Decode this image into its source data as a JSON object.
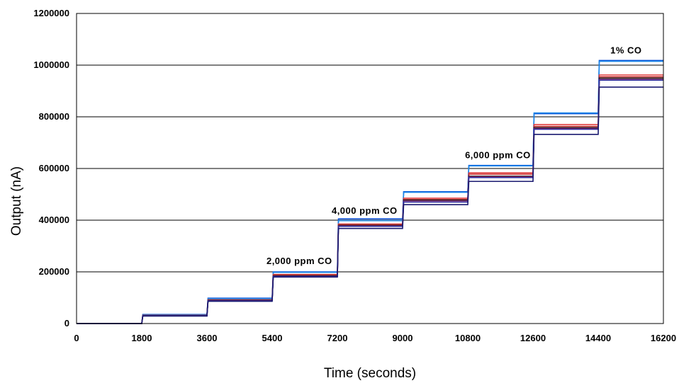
{
  "chart_data": {
    "type": "line",
    "xlabel": "Time (seconds)",
    "ylabel": "Output (nA)",
    "xlim": [
      0,
      16200
    ],
    "ylim": [
      0,
      1200000
    ],
    "x_ticks": [
      "0",
      "1800",
      "3600",
      "5400",
      "7200",
      "9000",
      "10800",
      "12600",
      "14400",
      "16200"
    ],
    "y_ticks": [
      "0",
      "200000",
      "400000",
      "600000",
      "800000",
      "1000000",
      "1200000"
    ],
    "grid": true,
    "legend": "none",
    "step_times": [
      0,
      1800,
      3600,
      5400,
      7200,
      9000,
      10800,
      12600,
      14400,
      16200
    ],
    "series": [
      {
        "color": "#0a4fd6",
        "values": [
          0,
          35000,
          98000,
          200000,
          405000,
          510000,
          612000,
          812000,
          1018000
        ]
      },
      {
        "color": "#1a86e8",
        "values": [
          0,
          34000,
          96000,
          198000,
          398000,
          508000,
          610000,
          815000,
          1015000
        ]
      },
      {
        "color": "#e04040",
        "values": [
          0,
          32000,
          92000,
          190000,
          385000,
          485000,
          583000,
          770000,
          962000
        ]
      },
      {
        "color": "#cc3030",
        "values": [
          0,
          31000,
          91000,
          188000,
          382000,
          480000,
          578000,
          763000,
          955000
        ]
      },
      {
        "color": "#202020",
        "values": [
          0,
          31000,
          90000,
          185000,
          380000,
          478000,
          570000,
          758000,
          950000
        ]
      },
      {
        "color": "#7a1f5a",
        "values": [
          0,
          30000,
          89000,
          183000,
          378000,
          475000,
          568000,
          755000,
          945000
        ]
      },
      {
        "color": "#3030a0",
        "values": [
          0,
          30000,
          88000,
          182000,
          376000,
          470000,
          565000,
          752000,
          942000
        ]
      },
      {
        "color": "#1a1a70",
        "values": [
          0,
          29000,
          86000,
          180000,
          368000,
          460000,
          550000,
          732000,
          915000
        ]
      }
    ],
    "annotations": [
      {
        "text": "2,000 ppm CO",
        "x": 6150,
        "y": 230000
      },
      {
        "text": "4,000 ppm CO",
        "x": 7950,
        "y": 425000
      },
      {
        "text": "6,000 ppm CO",
        "x": 11630,
        "y": 640000
      },
      {
        "text": "1% CO",
        "x": 15170,
        "y": 1045000
      }
    ]
  }
}
